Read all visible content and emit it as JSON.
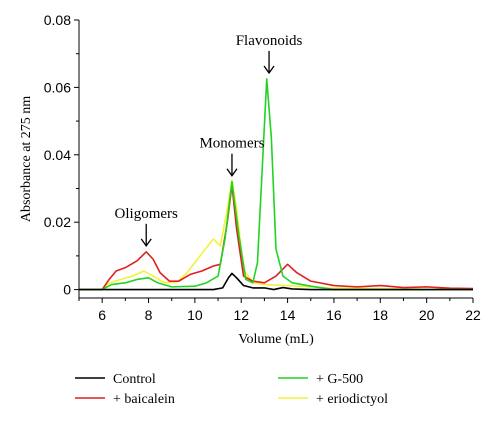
{
  "chart_data": {
    "type": "line",
    "title": "",
    "xlabel": "Volume (mL)",
    "ylabel": "Absorbance at 275 nm",
    "xlim": [
      5,
      22
    ],
    "ylim": [
      -0.0025,
      0.08
    ],
    "xticks": [
      6,
      8,
      10,
      12,
      14,
      16,
      18,
      20,
      22
    ],
    "yticks": [
      0,
      0.02,
      0.04,
      0.06,
      0.08
    ],
    "ytick_labels": [
      "0",
      "0.02",
      "0.04",
      "0.06",
      "0.08"
    ],
    "grid": false,
    "legend_position": "bottom",
    "annotations": [
      {
        "text": "Oligomers",
        "x": 7.9,
        "y": 0.0112
      },
      {
        "text": "Monomers",
        "x": 11.6,
        "y": 0.032
      },
      {
        "text": "Flavonoids",
        "x": 13.2,
        "y": 0.0625
      }
    ],
    "series": [
      {
        "name": "Control",
        "color": "#000000",
        "points": [
          [
            5,
            0
          ],
          [
            10,
            0
          ],
          [
            10.8,
            0
          ],
          [
            11.2,
            0.0005
          ],
          [
            11.45,
            0.0035
          ],
          [
            11.6,
            0.0048
          ],
          [
            11.8,
            0.0035
          ],
          [
            12.1,
            0.0012
          ],
          [
            12.5,
            0.0005
          ],
          [
            13,
            0.0005
          ],
          [
            13.4,
            0
          ],
          [
            13.8,
            0.0006
          ],
          [
            14.2,
            0.0002
          ],
          [
            15,
            0
          ],
          [
            22,
            0
          ]
        ]
      },
      {
        "name": "+ baicalein",
        "color": "#e02020",
        "points": [
          [
            5,
            0
          ],
          [
            6,
            0
          ],
          [
            6.3,
            0.003
          ],
          [
            6.6,
            0.0055
          ],
          [
            7,
            0.0065
          ],
          [
            7.5,
            0.0085
          ],
          [
            7.9,
            0.0112
          ],
          [
            8.2,
            0.009
          ],
          [
            8.5,
            0.005
          ],
          [
            8.9,
            0.0025
          ],
          [
            9.3,
            0.0025
          ],
          [
            9.8,
            0.0045
          ],
          [
            10.3,
            0.0055
          ],
          [
            10.8,
            0.007
          ],
          [
            11.1,
            0.0075
          ],
          [
            11.4,
            0.02
          ],
          [
            11.6,
            0.031
          ],
          [
            11.8,
            0.018
          ],
          [
            12.1,
            0.004
          ],
          [
            12.5,
            0.0025
          ],
          [
            13,
            0.002
          ],
          [
            13.5,
            0.004
          ],
          [
            14,
            0.0075
          ],
          [
            14.4,
            0.005
          ],
          [
            15,
            0.0025
          ],
          [
            16,
            0.0012
          ],
          [
            17,
            0.0008
          ],
          [
            18,
            0.0012
          ],
          [
            19,
            0.0006
          ],
          [
            20,
            0.0008
          ],
          [
            21,
            0.0004
          ],
          [
            22,
            0.0003
          ]
        ]
      },
      {
        "name": "+ G-500",
        "color": "#22d422",
        "points": [
          [
            5,
            0
          ],
          [
            6,
            0
          ],
          [
            6.4,
            0.0015
          ],
          [
            7,
            0.002
          ],
          [
            7.5,
            0.003
          ],
          [
            8,
            0.0035
          ],
          [
            8.4,
            0.002
          ],
          [
            9,
            0.0008
          ],
          [
            10,
            0.001
          ],
          [
            10.5,
            0.002
          ],
          [
            11,
            0.004
          ],
          [
            11.3,
            0.015
          ],
          [
            11.6,
            0.032
          ],
          [
            11.9,
            0.016
          ],
          [
            12.2,
            0.003
          ],
          [
            12.5,
            0.002
          ],
          [
            12.7,
            0.008
          ],
          [
            12.9,
            0.035
          ],
          [
            13.1,
            0.0625
          ],
          [
            13.3,
            0.045
          ],
          [
            13.5,
            0.012
          ],
          [
            13.8,
            0.004
          ],
          [
            14.2,
            0.002
          ],
          [
            15,
            0.001
          ],
          [
            16,
            0
          ],
          [
            22,
            0
          ]
        ]
      },
      {
        "name": "+ eriodictyol",
        "color": "#f2f23a",
        "points": [
          [
            5,
            0
          ],
          [
            6,
            0
          ],
          [
            6.3,
            0.002
          ],
          [
            6.8,
            0.003
          ],
          [
            7.3,
            0.004
          ],
          [
            7.8,
            0.0055
          ],
          [
            8.2,
            0.004
          ],
          [
            8.7,
            0.002
          ],
          [
            9.2,
            0.0022
          ],
          [
            9.6,
            0.0045
          ],
          [
            10,
            0.008
          ],
          [
            10.5,
            0.0125
          ],
          [
            10.8,
            0.015
          ],
          [
            11.1,
            0.013
          ],
          [
            11.4,
            0.024
          ],
          [
            11.6,
            0.0325
          ],
          [
            11.8,
            0.024
          ],
          [
            12.1,
            0.006
          ],
          [
            12.5,
            0.002
          ],
          [
            13,
            0.0015
          ],
          [
            14,
            0.0012
          ],
          [
            15,
            0.0008
          ],
          [
            16,
            0.0004
          ],
          [
            17,
            0.0004
          ],
          [
            18,
            0.0003
          ],
          [
            19,
            0.0002
          ],
          [
            20,
            0.0008
          ],
          [
            21,
            0.0002
          ],
          [
            22,
            0
          ]
        ]
      }
    ]
  }
}
